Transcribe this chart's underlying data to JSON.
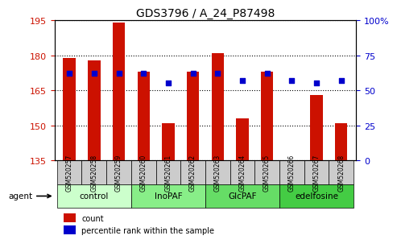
{
  "title": "GDS3796 / A_24_P87498",
  "samples": [
    "GSM520257",
    "GSM520258",
    "GSM520259",
    "GSM520260",
    "GSM520261",
    "GSM520262",
    "GSM520263",
    "GSM520264",
    "GSM520265",
    "GSM520266",
    "GSM520267",
    "GSM520268"
  ],
  "bar_values": [
    179,
    178,
    194,
    173,
    151,
    173,
    181,
    153,
    173,
    135,
    163,
    151
  ],
  "percentile_values": [
    62,
    62,
    62,
    62,
    55,
    62,
    62,
    57,
    62,
    57,
    55,
    57
  ],
  "bar_color": "#cc1100",
  "dot_color": "#0000cc",
  "ymin": 135,
  "ymax": 195,
  "yticks_left": [
    135,
    150,
    165,
    180,
    195
  ],
  "yticks_right": [
    0,
    25,
    50,
    75,
    100
  ],
  "ylabel_left_color": "#cc1100",
  "ylabel_right_color": "#0000cc",
  "groups": [
    {
      "label": "control",
      "start": 0,
      "end": 3,
      "color": "#ccffcc"
    },
    {
      "label": "InoPAF",
      "start": 3,
      "end": 6,
      "color": "#88ee88"
    },
    {
      "label": "GlcPAF",
      "start": 6,
      "end": 9,
      "color": "#66dd66"
    },
    {
      "label": "edelfosine",
      "start": 9,
      "end": 12,
      "color": "#44cc44"
    }
  ],
  "agent_label": "agent",
  "legend_count_label": "count",
  "legend_pct_label": "percentile rank within the sample",
  "background_color": "#ffffff",
  "plot_bg_color": "#ffffff",
  "tick_label_bg": "#cccccc"
}
